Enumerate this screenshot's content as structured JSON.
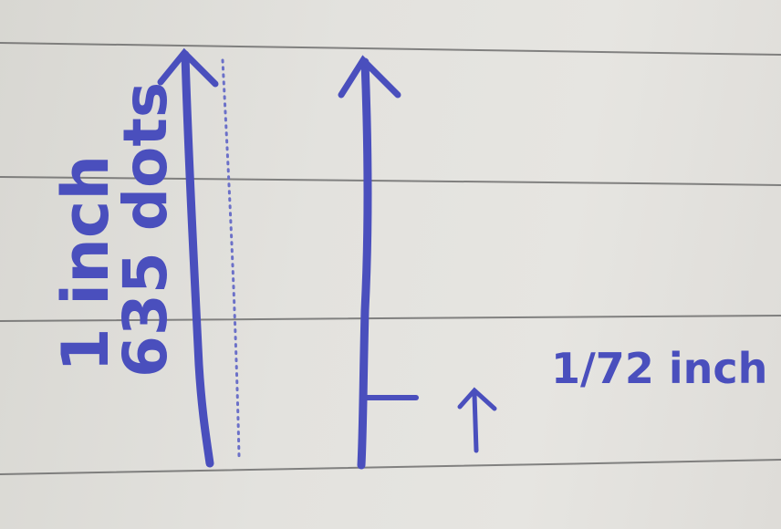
{
  "notes": {
    "label_inch": "1 inch",
    "label_dots": "635 dots",
    "label_fraction": "1/72 inch"
  },
  "colors": {
    "paper": "#e3e2de",
    "rule_line": "#5a5a5a",
    "ink": "#4a4fbd"
  }
}
